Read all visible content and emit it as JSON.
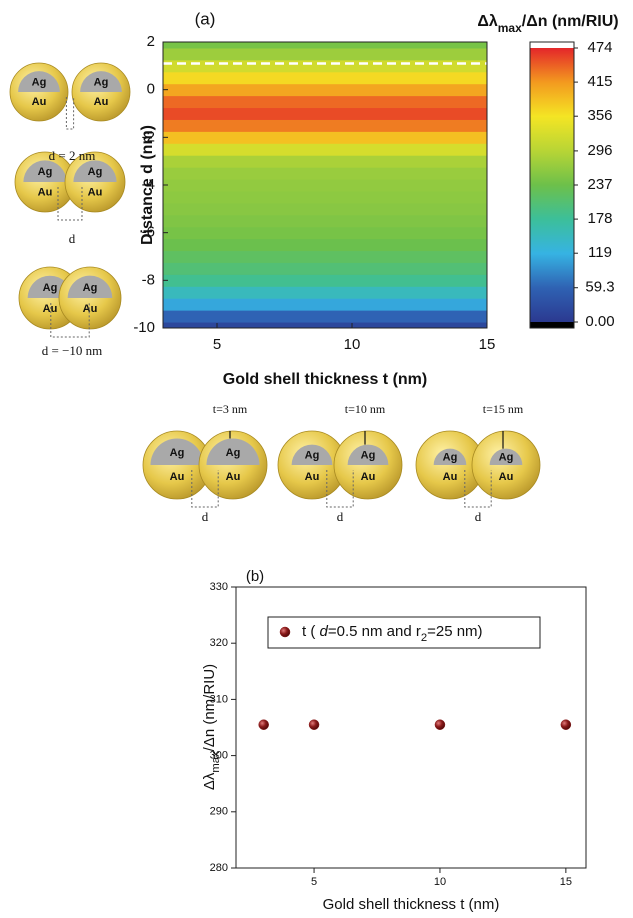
{
  "chart_data": [
    {
      "type": "heatmap",
      "title": "(a)",
      "colorbar_title": [
        "Δλ",
        "max",
        "/Δn (nm/RIU)"
      ],
      "xlabel": "Gold shell thickness t (nm)",
      "ylabel": "Distance d (nm)",
      "y": [
        -10,
        -9.5,
        -9,
        -8.5,
        -8,
        -7.5,
        -7,
        -6.5,
        -6,
        -5.5,
        -5,
        -4.5,
        -4,
        -3.5,
        -3,
        -2.5,
        -2,
        -1.5,
        -1,
        -0.5,
        0,
        0.5,
        1,
        1.5,
        2
      ],
      "values": [
        20,
        60,
        110,
        150,
        185,
        205,
        220,
        235,
        245,
        252,
        258,
        262,
        266,
        272,
        285,
        325,
        385,
        430,
        455,
        440,
        405,
        365,
        320,
        275,
        245
      ],
      "xlim": [
        3,
        15
      ],
      "ylim": [
        -10,
        2
      ],
      "xticks": [
        5,
        10,
        15
      ],
      "yticks": [
        -10,
        -8,
        -6,
        -4,
        -2,
        0,
        2
      ],
      "clim": [
        0,
        474
      ],
      "cticks": [
        {
          "value": 0,
          "label": "0.00"
        },
        59.3,
        119,
        178,
        237,
        296,
        356,
        415,
        474
      ],
      "colormap": [
        "#2b3990",
        "#2f62b3",
        "#36b3e3",
        "#3cbf9a",
        "#6dc04a",
        "#b8d535",
        "#f4e524",
        "#f39a1f",
        "#e4262a"
      ],
      "hline": 1.1
    },
    {
      "type": "scatter",
      "title": "(b)",
      "xlabel": "Gold shell thickness t (nm)",
      "ylabel": [
        "Δλ",
        "max",
        "/Δn (nm/RIU)"
      ],
      "xlim": [
        1.9,
        15.8
      ],
      "ylim": [
        280,
        330
      ],
      "xticks": [
        5,
        10,
        15
      ],
      "yticks": [
        280,
        290,
        300,
        310,
        320,
        330
      ],
      "series": [
        {
          "name": [
            "t ( ",
            "d",
            "=0.5 nm and r",
            "2",
            "=25 nm)"
          ],
          "color": "#8b1a1a",
          "x": [
            3,
            5,
            10,
            15
          ],
          "values": [
            305.5,
            305.5,
            305.5,
            305.5
          ]
        }
      ]
    }
  ],
  "schematics": {
    "core": "Ag",
    "shell": "Au",
    "left": [
      "d = 2 nm",
      "d",
      "d = −10 nm"
    ],
    "bottom": [
      {
        "t": "t=3 nm",
        "d": "d"
      },
      {
        "t": "t=10 nm",
        "d": "d"
      },
      {
        "t": "t=15 nm",
        "d": "d"
      }
    ]
  }
}
